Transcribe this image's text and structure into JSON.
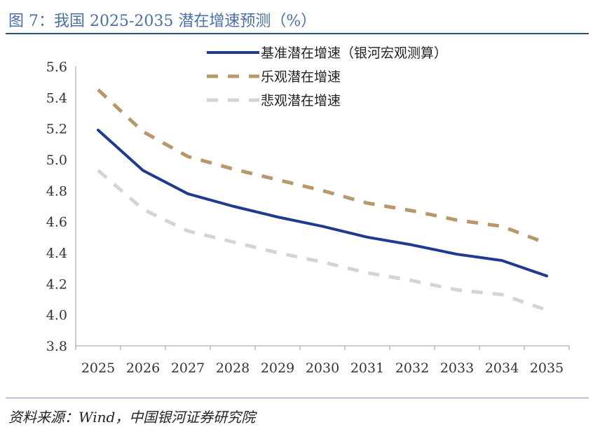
{
  "figure": {
    "title": "图 7：我国 2025-2035 潜在增速预测（%）",
    "source": "资料来源：Wind，中国银河证券研究院"
  },
  "chart_data": {
    "type": "line",
    "title": "图 7：我国 2025-2035 潜在增速预测（%）",
    "xlabel": "",
    "ylabel": "",
    "categories": [
      "2025",
      "2026",
      "2027",
      "2028",
      "2029",
      "2030",
      "2031",
      "2032",
      "2033",
      "2034",
      "2035"
    ],
    "y_ticks": [
      "3.8",
      "4.0",
      "4.2",
      "4.4",
      "4.6",
      "4.8",
      "5.0",
      "5.2",
      "5.4",
      "5.6"
    ],
    "ylim": [
      3.8,
      5.6
    ],
    "grid": false,
    "legend_position": "top-right",
    "series": [
      {
        "name": "基准潜在增速（银河宏观测算）",
        "style": "solid",
        "color": "#1f3a8f",
        "values": [
          5.19,
          4.93,
          4.78,
          4.7,
          4.63,
          4.57,
          4.5,
          4.45,
          4.39,
          4.35,
          4.25
        ]
      },
      {
        "name": "乐观潜在增速",
        "style": "dashed",
        "color": "#b8976a",
        "values": [
          5.45,
          5.18,
          5.02,
          4.94,
          4.87,
          4.8,
          4.72,
          4.67,
          4.61,
          4.57,
          4.46
        ]
      },
      {
        "name": "悲观潜在增速",
        "style": "dashed",
        "color": "#d4d4d4",
        "values": [
          4.93,
          4.68,
          4.54,
          4.47,
          4.4,
          4.34,
          4.27,
          4.22,
          4.16,
          4.13,
          4.03
        ]
      }
    ]
  }
}
